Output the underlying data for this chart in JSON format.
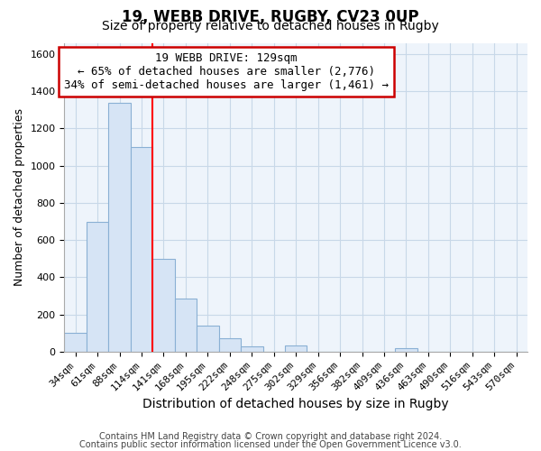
{
  "title": "19, WEBB DRIVE, RUGBY, CV23 0UP",
  "subtitle": "Size of property relative to detached houses in Rugby",
  "xlabel": "Distribution of detached houses by size in Rugby",
  "ylabel": "Number of detached properties",
  "categories": [
    "34sqm",
    "61sqm",
    "88sqm",
    "114sqm",
    "141sqm",
    "168sqm",
    "195sqm",
    "222sqm",
    "248sqm",
    "275sqm",
    "302sqm",
    "329sqm",
    "356sqm",
    "382sqm",
    "409sqm",
    "436sqm",
    "463sqm",
    "490sqm",
    "516sqm",
    "543sqm",
    "570sqm"
  ],
  "values": [
    100,
    700,
    1340,
    1100,
    500,
    285,
    140,
    75,
    30,
    0,
    35,
    0,
    0,
    0,
    0,
    20,
    0,
    0,
    0,
    0,
    0
  ],
  "bar_color": "#d6e4f5",
  "bar_edge_color": "#8ab0d4",
  "red_line_index": 4,
  "annotation_line1": "19 WEBB DRIVE: 129sqm",
  "annotation_line2": "← 65% of detached houses are smaller (2,776)",
  "annotation_line3": "34% of semi-detached houses are larger (1,461) →",
  "annotation_box_color": "#ffffff",
  "annotation_box_edge_color": "#cc0000",
  "ylim": [
    0,
    1660
  ],
  "yticks": [
    0,
    200,
    400,
    600,
    800,
    1000,
    1200,
    1400,
    1600
  ],
  "footer1": "Contains HM Land Registry data © Crown copyright and database right 2024.",
  "footer2": "Contains public sector information licensed under the Open Government Licence v3.0.",
  "bg_color": "#ffffff",
  "plot_bg_color": "#eef4fb",
  "grid_color": "#c8d8e8",
  "title_fontsize": 12,
  "subtitle_fontsize": 10,
  "xlabel_fontsize": 10,
  "ylabel_fontsize": 9,
  "tick_fontsize": 8,
  "annotation_fontsize": 9,
  "footer_fontsize": 7
}
